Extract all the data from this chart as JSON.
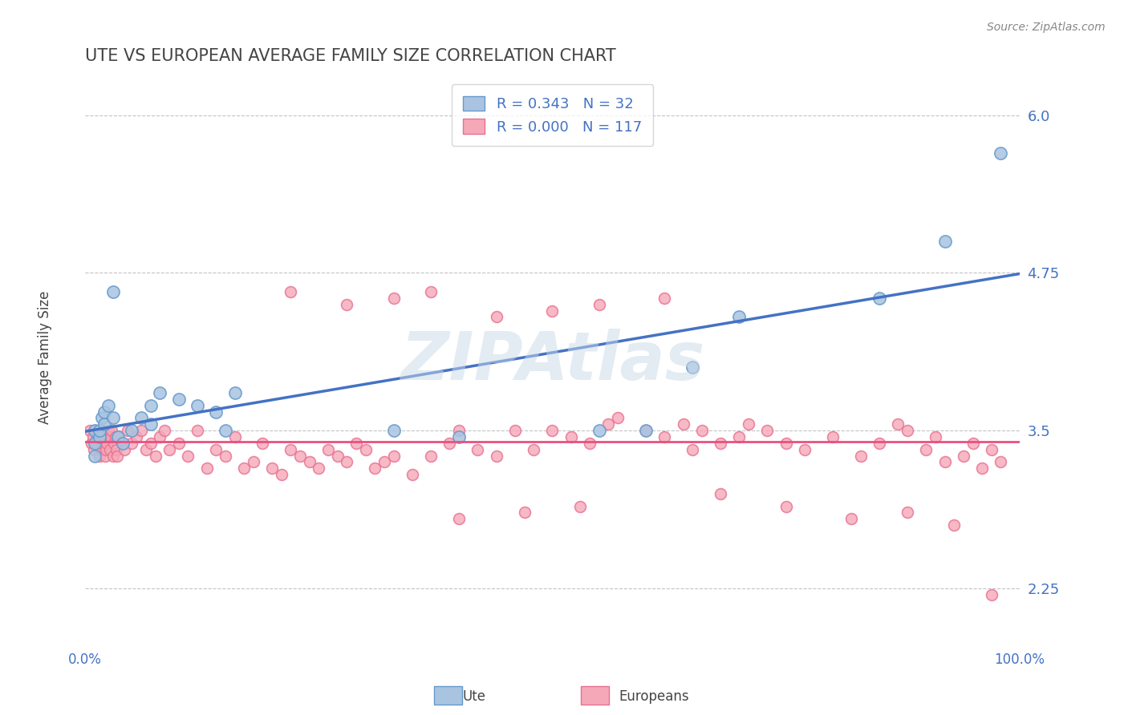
{
  "title": "UTE VS EUROPEAN AVERAGE FAMILY SIZE CORRELATION CHART",
  "source_text": "Source: ZipAtlas.com",
  "xlabel": "",
  "ylabel": "Average Family Size",
  "xlim": [
    0.0,
    1.0
  ],
  "ylim": [
    1.8,
    6.3
  ],
  "yticks": [
    2.25,
    3.5,
    4.75,
    6.0
  ],
  "xticks": [
    0.0,
    1.0
  ],
  "xticklabels": [
    "0.0%",
    "100.0%"
  ],
  "title_color": "#444444",
  "title_fontsize": 15,
  "axis_label_color": "#444444",
  "tick_color": "#4472c4",
  "grid_color": "#aaaaaa",
  "background_color": "#ffffff",
  "ute_color": "#a8c4e0",
  "ute_edge_color": "#6699cc",
  "euro_color": "#f5a8b8",
  "euro_edge_color": "#e87090",
  "ute_R": 0.343,
  "ute_N": 32,
  "euro_R": 0.0,
  "euro_N": 117,
  "blue_line_color": "#4472c4",
  "pink_line_color": "#e85080",
  "legend_R_color": "#4472c4",
  "legend_N_color": "#4472c4",
  "watermark_text": "ZIPAtlas",
  "watermark_color": "#c8d8e8",
  "ute_x": [
    0.01,
    0.01,
    0.01,
    0.015,
    0.015,
    0.018,
    0.02,
    0.02,
    0.025,
    0.03,
    0.03,
    0.035,
    0.04,
    0.05,
    0.06,
    0.07,
    0.07,
    0.08,
    0.1,
    0.12,
    0.14,
    0.15,
    0.16,
    0.33,
    0.4,
    0.55,
    0.6,
    0.65,
    0.7,
    0.85,
    0.92,
    0.98
  ],
  "ute_y": [
    3.5,
    3.4,
    3.3,
    3.45,
    3.5,
    3.6,
    3.55,
    3.65,
    3.7,
    3.6,
    4.6,
    3.45,
    3.4,
    3.5,
    3.6,
    3.55,
    3.7,
    3.8,
    3.75,
    3.7,
    3.65,
    3.5,
    3.8,
    3.5,
    3.45,
    3.5,
    3.5,
    4.0,
    4.4,
    4.55,
    5.0,
    5.7
  ],
  "euro_x": [
    0.005,
    0.007,
    0.008,
    0.009,
    0.01,
    0.012,
    0.013,
    0.014,
    0.015,
    0.016,
    0.017,
    0.018,
    0.019,
    0.02,
    0.021,
    0.022,
    0.023,
    0.025,
    0.026,
    0.027,
    0.028,
    0.03,
    0.031,
    0.032,
    0.033,
    0.034,
    0.035,
    0.04,
    0.042,
    0.045,
    0.05,
    0.055,
    0.06,
    0.065,
    0.07,
    0.075,
    0.08,
    0.085,
    0.09,
    0.1,
    0.11,
    0.12,
    0.13,
    0.14,
    0.15,
    0.16,
    0.17,
    0.18,
    0.19,
    0.2,
    0.21,
    0.22,
    0.23,
    0.24,
    0.25,
    0.26,
    0.27,
    0.28,
    0.29,
    0.3,
    0.31,
    0.32,
    0.33,
    0.35,
    0.37,
    0.39,
    0.4,
    0.42,
    0.44,
    0.46,
    0.48,
    0.5,
    0.52,
    0.54,
    0.56,
    0.57,
    0.6,
    0.62,
    0.64,
    0.65,
    0.66,
    0.68,
    0.7,
    0.71,
    0.73,
    0.75,
    0.77,
    0.8,
    0.83,
    0.85,
    0.87,
    0.88,
    0.9,
    0.91,
    0.92,
    0.94,
    0.95,
    0.96,
    0.97,
    0.98,
    0.22,
    0.28,
    0.33,
    0.37,
    0.44,
    0.5,
    0.55,
    0.62,
    0.68,
    0.75,
    0.82,
    0.88,
    0.93,
    0.97,
    0.4,
    0.47,
    0.53
  ],
  "euro_y": [
    3.5,
    3.4,
    3.45,
    3.35,
    3.5,
    3.4,
    3.45,
    3.5,
    3.3,
    3.45,
    3.35,
    3.4,
    3.5,
    3.45,
    3.3,
    3.35,
    3.4,
    3.5,
    3.35,
    3.45,
    3.5,
    3.3,
    3.4,
    3.45,
    3.35,
    3.3,
    3.45,
    3.4,
    3.35,
    3.5,
    3.4,
    3.45,
    3.5,
    3.35,
    3.4,
    3.3,
    3.45,
    3.5,
    3.35,
    3.4,
    3.3,
    3.5,
    3.2,
    3.35,
    3.3,
    3.45,
    3.2,
    3.25,
    3.4,
    3.2,
    3.15,
    3.35,
    3.3,
    3.25,
    3.2,
    3.35,
    3.3,
    3.25,
    3.4,
    3.35,
    3.2,
    3.25,
    3.3,
    3.15,
    3.3,
    3.4,
    3.5,
    3.35,
    3.3,
    3.5,
    3.35,
    3.5,
    3.45,
    3.4,
    3.55,
    3.6,
    3.5,
    3.45,
    3.55,
    3.35,
    3.5,
    3.4,
    3.45,
    3.55,
    3.5,
    3.4,
    3.35,
    3.45,
    3.3,
    3.4,
    3.55,
    3.5,
    3.35,
    3.45,
    3.25,
    3.3,
    3.4,
    3.2,
    3.35,
    3.25,
    4.6,
    4.5,
    4.55,
    4.6,
    4.4,
    4.45,
    4.5,
    4.55,
    3.0,
    2.9,
    2.8,
    2.85,
    2.75,
    2.2,
    2.8,
    2.85,
    2.9
  ]
}
